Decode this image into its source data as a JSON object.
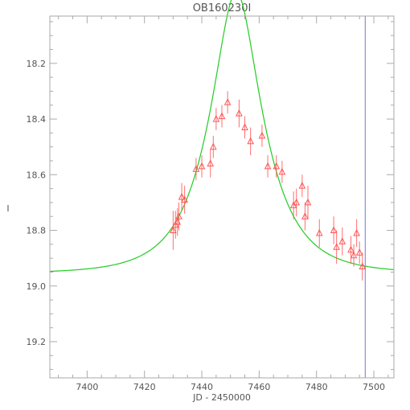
{
  "chart_data": {
    "type": "scatter",
    "title": "OB160230I",
    "xlabel": "JD - 2450000",
    "ylabel": "I",
    "xlim": [
      7387,
      7507
    ],
    "ylim": [
      19.33,
      18.03
    ],
    "y_inverted": true,
    "grid": false,
    "x_major_ticks": [
      7400,
      7420,
      7440,
      7460,
      7480,
      7500
    ],
    "x_tick_labels": [
      "7400",
      "7420",
      "7440",
      "7460",
      "7480",
      "7500"
    ],
    "y_major_ticks": [
      18.2,
      18.4,
      18.6,
      18.8,
      19.0,
      19.2
    ],
    "y_tick_labels": [
      "18.2",
      "18.4",
      "18.6",
      "18.8",
      "19.0",
      "19.2"
    ],
    "vline": {
      "x": 7497,
      "color": "#8c8cdc"
    },
    "model": {
      "color": "#22cc22",
      "base_mag": 18.955,
      "u0": 0.42,
      "tE": 17.0,
      "t0": 7452
    },
    "series": [
      {
        "marker": "triangle",
        "color": "#ff5555",
        "points": [
          {
            "x": 7430.0,
            "y": 18.8,
            "err": 0.07
          },
          {
            "x": 7430.8,
            "y": 18.78,
            "err": 0.05
          },
          {
            "x": 7431.5,
            "y": 18.77,
            "err": 0.05
          },
          {
            "x": 7432.0,
            "y": 18.75,
            "err": 0.05
          },
          {
            "x": 7433.0,
            "y": 18.68,
            "err": 0.05
          },
          {
            "x": 7434.0,
            "y": 18.69,
            "err": 0.05
          },
          {
            "x": 7438.0,
            "y": 18.58,
            "err": 0.04
          },
          {
            "x": 7440.0,
            "y": 18.57,
            "err": 0.04
          },
          {
            "x": 7443.0,
            "y": 18.56,
            "err": 0.05
          },
          {
            "x": 7444.0,
            "y": 18.5,
            "err": 0.04
          },
          {
            "x": 7445.0,
            "y": 18.4,
            "err": 0.04
          },
          {
            "x": 7447.0,
            "y": 18.39,
            "err": 0.04
          },
          {
            "x": 7449.0,
            "y": 18.34,
            "err": 0.04
          },
          {
            "x": 7453.0,
            "y": 18.38,
            "err": 0.05
          },
          {
            "x": 7455.0,
            "y": 18.43,
            "err": 0.04
          },
          {
            "x": 7457.0,
            "y": 18.48,
            "err": 0.05
          },
          {
            "x": 7461.0,
            "y": 18.46,
            "err": 0.04
          },
          {
            "x": 7463.0,
            "y": 18.57,
            "err": 0.04
          },
          {
            "x": 7466.0,
            "y": 18.57,
            "err": 0.04
          },
          {
            "x": 7468.0,
            "y": 18.59,
            "err": 0.04
          },
          {
            "x": 7472.0,
            "y": 18.71,
            "err": 0.05
          },
          {
            "x": 7473.0,
            "y": 18.7,
            "err": 0.05
          },
          {
            "x": 7475.0,
            "y": 18.64,
            "err": 0.04
          },
          {
            "x": 7476.0,
            "y": 18.75,
            "err": 0.05
          },
          {
            "x": 7477.0,
            "y": 18.7,
            "err": 0.06
          },
          {
            "x": 7481.0,
            "y": 18.81,
            "err": 0.05
          },
          {
            "x": 7486.0,
            "y": 18.8,
            "err": 0.05
          },
          {
            "x": 7487.0,
            "y": 18.86,
            "err": 0.06
          },
          {
            "x": 7489.0,
            "y": 18.84,
            "err": 0.05
          },
          {
            "x": 7492.0,
            "y": 18.87,
            "err": 0.05
          },
          {
            "x": 7493.0,
            "y": 18.89,
            "err": 0.04
          },
          {
            "x": 7494.0,
            "y": 18.81,
            "err": 0.05
          },
          {
            "x": 7495.0,
            "y": 18.88,
            "err": 0.04
          },
          {
            "x": 7496.0,
            "y": 18.93,
            "err": 0.05
          }
        ]
      }
    ]
  }
}
